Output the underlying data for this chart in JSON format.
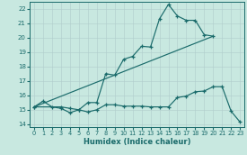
{
  "xlabel": "Humidex (Indice chaleur)",
  "xlim": [
    -0.5,
    23.5
  ],
  "ylim": [
    13.8,
    22.5
  ],
  "xticks": [
    0,
    1,
    2,
    3,
    4,
    5,
    6,
    7,
    8,
    9,
    10,
    11,
    12,
    13,
    14,
    15,
    16,
    17,
    18,
    19,
    20,
    21,
    22,
    23
  ],
  "yticks": [
    14,
    15,
    16,
    17,
    18,
    19,
    20,
    21,
    22
  ],
  "bg_color": "#c8e8e0",
  "line_color": "#1a6b6b",
  "line1_x": [
    0,
    1,
    2,
    3,
    4,
    5,
    6,
    7,
    8,
    9,
    10,
    11,
    12,
    13,
    14,
    15,
    16,
    17,
    18,
    19,
    20
  ],
  "line1_y": [
    15.2,
    15.6,
    15.2,
    15.1,
    14.8,
    15.0,
    15.5,
    15.5,
    17.5,
    17.4,
    18.5,
    18.7,
    19.4,
    19.35,
    21.3,
    22.3,
    21.5,
    21.2,
    21.2,
    20.2,
    20.1
  ],
  "line2_x": [
    0,
    3,
    4,
    5,
    6,
    7,
    8,
    9,
    10,
    11,
    12,
    13,
    14,
    15,
    16,
    17,
    18,
    19,
    20,
    21,
    22,
    23
  ],
  "line2_y": [
    15.2,
    15.2,
    15.1,
    15.0,
    14.85,
    15.0,
    15.35,
    15.35,
    15.25,
    15.25,
    15.25,
    15.2,
    15.2,
    15.2,
    15.85,
    15.95,
    16.25,
    16.3,
    16.6,
    16.6,
    14.9,
    14.15
  ],
  "line3_x": [
    0,
    20
  ],
  "line3_y": [
    15.2,
    20.1
  ]
}
